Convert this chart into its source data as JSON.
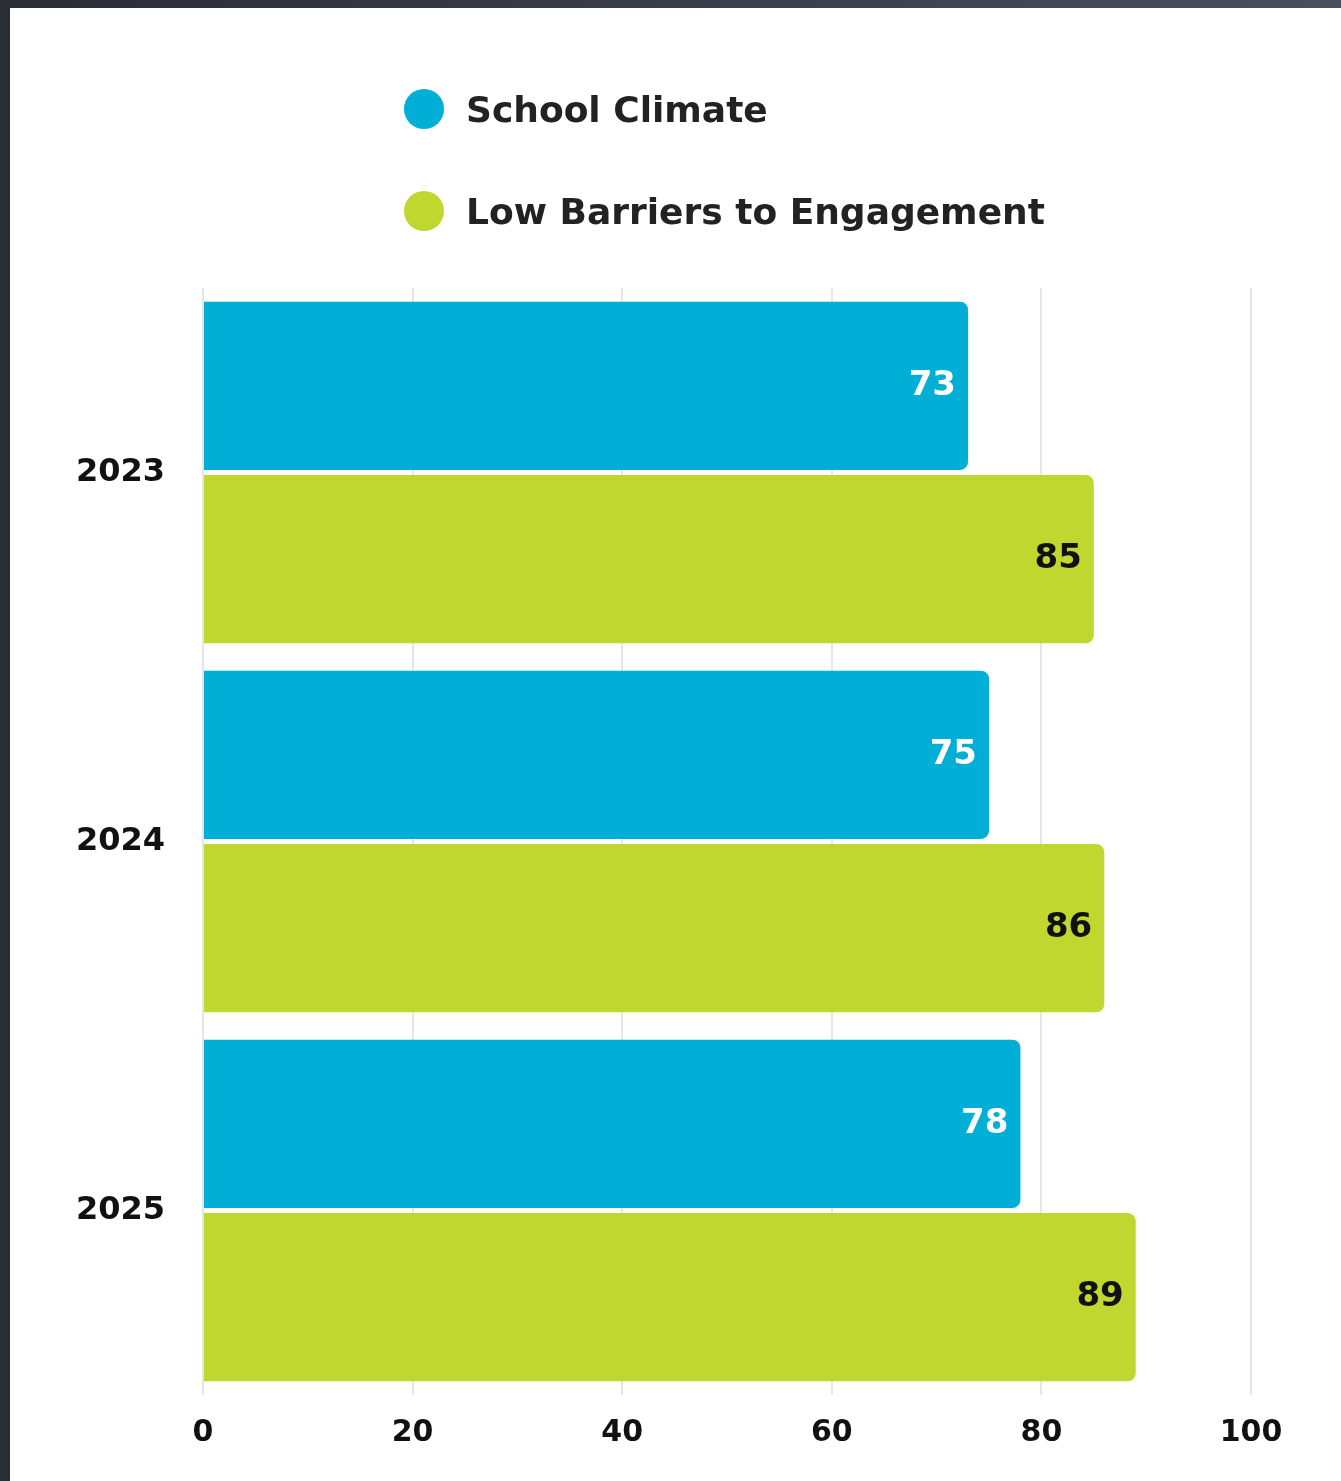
{
  "chart_data": {
    "type": "bar",
    "orientation": "horizontal",
    "categories": [
      "2023",
      "2024",
      "2025"
    ],
    "series": [
      {
        "name": "School Climate",
        "color": "#00aed6",
        "values": [
          73,
          75,
          78
        ]
      },
      {
        "name": "Low Barriers to Engagement",
        "color": "#bfd72f",
        "values": [
          85,
          86,
          89
        ]
      }
    ],
    "xlim": [
      0,
      100
    ],
    "xticks": [
      0,
      20,
      40,
      60,
      80,
      100
    ],
    "grid": "x",
    "legend": "top",
    "data_labels": true
  }
}
